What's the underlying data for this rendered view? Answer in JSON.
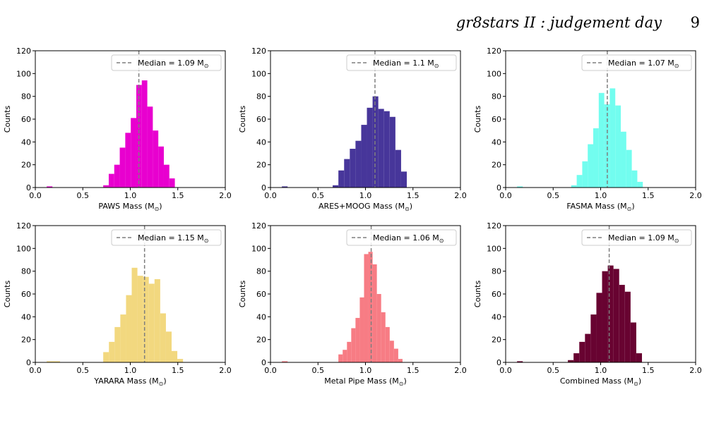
{
  "header": {
    "running_title": "gr8stars II : judgement day",
    "page_number": "9"
  },
  "chart_data": [
    {
      "type": "bar",
      "xlabel": "PAWS Mass (M⊙)",
      "ylabel": "Counts",
      "xlim": [
        0,
        2
      ],
      "ylim": [
        0,
        120
      ],
      "xticks": [
        "0.0",
        "0.5",
        "1.0",
        "1.5",
        "2.0"
      ],
      "yticks": [
        "0",
        "20",
        "40",
        "60",
        "80",
        "100",
        "120"
      ],
      "color": "#e800cf",
      "median": 1.09,
      "legend_label": "Median = 1.09 M⊙",
      "legend_position": "top-right",
      "bins": [
        {
          "x0": 0.12,
          "x1": 0.18,
          "count": 1
        },
        {
          "x0": 0.715,
          "x1": 0.773,
          "count": 2
        },
        {
          "x0": 0.773,
          "x1": 0.831,
          "count": 12
        },
        {
          "x0": 0.831,
          "x1": 0.889,
          "count": 20
        },
        {
          "x0": 0.889,
          "x1": 0.947,
          "count": 35
        },
        {
          "x0": 0.947,
          "x1": 1.005,
          "count": 48
        },
        {
          "x0": 1.005,
          "x1": 1.063,
          "count": 61
        },
        {
          "x0": 1.063,
          "x1": 1.121,
          "count": 90
        },
        {
          "x0": 1.121,
          "x1": 1.179,
          "count": 94
        },
        {
          "x0": 1.179,
          "x1": 1.237,
          "count": 71
        },
        {
          "x0": 1.237,
          "x1": 1.295,
          "count": 50
        },
        {
          "x0": 1.295,
          "x1": 1.353,
          "count": 36
        },
        {
          "x0": 1.353,
          "x1": 1.411,
          "count": 20
        },
        {
          "x0": 1.411,
          "x1": 1.469,
          "count": 8
        }
      ]
    },
    {
      "type": "bar",
      "xlabel": "ARES+MOOG Mass (M⊙)",
      "ylabel": "Counts",
      "xlim": [
        0,
        2
      ],
      "ylim": [
        0,
        120
      ],
      "xticks": [
        "0.0",
        "0.5",
        "1.0",
        "1.5",
        "2.0"
      ],
      "yticks": [
        "0",
        "20",
        "40",
        "60",
        "80",
        "100",
        "120"
      ],
      "color": "#47369a",
      "median": 1.1,
      "legend_label": "Median = 1.1 M⊙",
      "legend_position": "top-right",
      "bins": [
        {
          "x0": 0.12,
          "x1": 0.18,
          "count": 1
        },
        {
          "x0": 0.655,
          "x1": 0.715,
          "count": 2
        },
        {
          "x0": 0.715,
          "x1": 0.775,
          "count": 15
        },
        {
          "x0": 0.775,
          "x1": 0.835,
          "count": 25
        },
        {
          "x0": 0.835,
          "x1": 0.895,
          "count": 34
        },
        {
          "x0": 0.895,
          "x1": 0.955,
          "count": 41
        },
        {
          "x0": 0.955,
          "x1": 1.015,
          "count": 55
        },
        {
          "x0": 1.015,
          "x1": 1.075,
          "count": 70
        },
        {
          "x0": 1.075,
          "x1": 1.135,
          "count": 80
        },
        {
          "x0": 1.135,
          "x1": 1.195,
          "count": 69
        },
        {
          "x0": 1.195,
          "x1": 1.255,
          "count": 67
        },
        {
          "x0": 1.255,
          "x1": 1.315,
          "count": 62
        },
        {
          "x0": 1.315,
          "x1": 1.375,
          "count": 33
        },
        {
          "x0": 1.375,
          "x1": 1.435,
          "count": 14
        }
      ]
    },
    {
      "type": "bar",
      "xlabel": "FASMA Mass (M⊙)",
      "ylabel": "Counts",
      "xlim": [
        0,
        2
      ],
      "ylim": [
        0,
        120
      ],
      "xticks": [
        "0.0",
        "0.5",
        "1.0",
        "1.5",
        "2.0"
      ],
      "yticks": [
        "0",
        "20",
        "40",
        "60",
        "80",
        "100",
        "120"
      ],
      "color": "#72fdef",
      "median": 1.07,
      "legend_label": "Median = 1.07 M⊙",
      "legend_position": "top-right",
      "bins": [
        {
          "x0": 0.12,
          "x1": 0.18,
          "count": 1
        },
        {
          "x0": 0.69,
          "x1": 0.748,
          "count": 2
        },
        {
          "x0": 0.748,
          "x1": 0.806,
          "count": 11
        },
        {
          "x0": 0.806,
          "x1": 0.864,
          "count": 23
        },
        {
          "x0": 0.864,
          "x1": 0.922,
          "count": 38
        },
        {
          "x0": 0.922,
          "x1": 0.98,
          "count": 52
        },
        {
          "x0": 0.98,
          "x1": 1.038,
          "count": 83
        },
        {
          "x0": 1.038,
          "x1": 1.096,
          "count": 73
        },
        {
          "x0": 1.096,
          "x1": 1.154,
          "count": 87
        },
        {
          "x0": 1.154,
          "x1": 1.212,
          "count": 72
        },
        {
          "x0": 1.212,
          "x1": 1.27,
          "count": 49
        },
        {
          "x0": 1.27,
          "x1": 1.328,
          "count": 33
        },
        {
          "x0": 1.328,
          "x1": 1.386,
          "count": 15
        },
        {
          "x0": 1.386,
          "x1": 1.444,
          "count": 5
        }
      ]
    },
    {
      "type": "bar",
      "xlabel": "YARARA Mass (M⊙)",
      "ylabel": "Counts",
      "xlim": [
        0,
        2
      ],
      "ylim": [
        0,
        120
      ],
      "xticks": [
        "0.0",
        "0.5",
        "1.0",
        "1.5",
        "2.0"
      ],
      "yticks": [
        "0",
        "20",
        "40",
        "60",
        "80",
        "100",
        "120"
      ],
      "color": "#f2d87f",
      "median": 1.15,
      "legend_label": "Median = 1.15 M⊙",
      "legend_position": "top-right",
      "bins": [
        {
          "x0": 0.12,
          "x1": 0.26,
          "count": 1
        },
        {
          "x0": 0.715,
          "x1": 0.775,
          "count": 9
        },
        {
          "x0": 0.775,
          "x1": 0.835,
          "count": 18
        },
        {
          "x0": 0.835,
          "x1": 0.895,
          "count": 31
        },
        {
          "x0": 0.895,
          "x1": 0.955,
          "count": 42
        },
        {
          "x0": 0.955,
          "x1": 1.015,
          "count": 59
        },
        {
          "x0": 1.015,
          "x1": 1.075,
          "count": 83
        },
        {
          "x0": 1.075,
          "x1": 1.135,
          "count": 76
        },
        {
          "x0": 1.135,
          "x1": 1.195,
          "count": 75
        },
        {
          "x0": 1.195,
          "x1": 1.255,
          "count": 69
        },
        {
          "x0": 1.255,
          "x1": 1.315,
          "count": 73
        },
        {
          "x0": 1.315,
          "x1": 1.375,
          "count": 43
        },
        {
          "x0": 1.375,
          "x1": 1.435,
          "count": 27
        },
        {
          "x0": 1.435,
          "x1": 1.495,
          "count": 10
        },
        {
          "x0": 1.495,
          "x1": 1.555,
          "count": 3
        }
      ]
    },
    {
      "type": "bar",
      "xlabel": "Metal Pipe Mass (M⊙)",
      "ylabel": "Counts",
      "xlim": [
        0,
        2
      ],
      "ylim": [
        0,
        120
      ],
      "xticks": [
        "0.0",
        "0.5",
        "1.0",
        "1.5",
        "2.0"
      ],
      "yticks": [
        "0",
        "20",
        "40",
        "60",
        "80",
        "100",
        "120"
      ],
      "color": "#f77c84",
      "median": 1.06,
      "legend_label": "Median = 1.06 M⊙",
      "legend_position": "top-right",
      "bins": [
        {
          "x0": 0.12,
          "x1": 0.18,
          "count": 1
        },
        {
          "x0": 0.715,
          "x1": 0.76,
          "count": 7
        },
        {
          "x0": 0.76,
          "x1": 0.805,
          "count": 11
        },
        {
          "x0": 0.805,
          "x1": 0.85,
          "count": 18
        },
        {
          "x0": 0.85,
          "x1": 0.895,
          "count": 30
        },
        {
          "x0": 0.895,
          "x1": 0.94,
          "count": 39
        },
        {
          "x0": 0.94,
          "x1": 0.985,
          "count": 57
        },
        {
          "x0": 0.985,
          "x1": 1.03,
          "count": 95
        },
        {
          "x0": 1.03,
          "x1": 1.075,
          "count": 97
        },
        {
          "x0": 1.075,
          "x1": 1.12,
          "count": 86
        },
        {
          "x0": 1.12,
          "x1": 1.165,
          "count": 60
        },
        {
          "x0": 1.165,
          "x1": 1.21,
          "count": 44
        },
        {
          "x0": 1.21,
          "x1": 1.255,
          "count": 31
        },
        {
          "x0": 1.255,
          "x1": 1.3,
          "count": 19
        },
        {
          "x0": 1.3,
          "x1": 1.345,
          "count": 12
        },
        {
          "x0": 1.345,
          "x1": 1.39,
          "count": 3
        }
      ]
    },
    {
      "type": "bar",
      "xlabel": "Combined Mass (M⊙)",
      "ylabel": "Counts",
      "xlim": [
        0,
        2
      ],
      "ylim": [
        0,
        120
      ],
      "xticks": [
        "0.0",
        "0.5",
        "1.0",
        "1.5",
        "2.0"
      ],
      "yticks": [
        "0",
        "20",
        "40",
        "60",
        "80",
        "100",
        "120"
      ],
      "color": "#680331",
      "median": 1.09,
      "legend_label": "Median = 1.09 M⊙",
      "legend_position": "top-right",
      "bins": [
        {
          "x0": 0.12,
          "x1": 0.18,
          "count": 1
        },
        {
          "x0": 0.655,
          "x1": 0.715,
          "count": 2
        },
        {
          "x0": 0.715,
          "x1": 0.775,
          "count": 8
        },
        {
          "x0": 0.775,
          "x1": 0.835,
          "count": 18
        },
        {
          "x0": 0.835,
          "x1": 0.895,
          "count": 25
        },
        {
          "x0": 0.895,
          "x1": 0.955,
          "count": 42
        },
        {
          "x0": 0.955,
          "x1": 1.015,
          "count": 61
        },
        {
          "x0": 1.015,
          "x1": 1.075,
          "count": 80
        },
        {
          "x0": 1.075,
          "x1": 1.135,
          "count": 85
        },
        {
          "x0": 1.135,
          "x1": 1.195,
          "count": 82
        },
        {
          "x0": 1.195,
          "x1": 1.255,
          "count": 68
        },
        {
          "x0": 1.255,
          "x1": 1.315,
          "count": 62
        },
        {
          "x0": 1.315,
          "x1": 1.375,
          "count": 35
        },
        {
          "x0": 1.375,
          "x1": 1.435,
          "count": 8
        }
      ]
    }
  ]
}
